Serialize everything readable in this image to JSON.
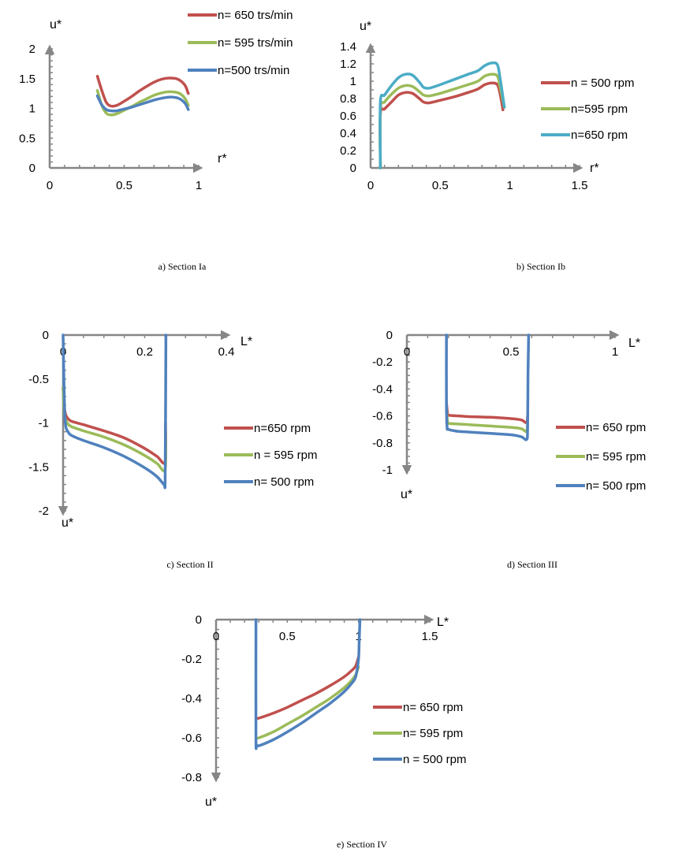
{
  "chart_data": [
    {
      "id": "a",
      "type": "line",
      "caption": "a) Section Ia",
      "xlabel": "r*",
      "ylabel": "u*",
      "xlim": [
        0,
        1
      ],
      "ylim": [
        0,
        2
      ],
      "xticks": [
        "0",
        "0.5",
        "1"
      ],
      "xtick_values": [
        0,
        0.5,
        1
      ],
      "yticks": [
        "0",
        "0.5",
        "1",
        "1.5",
        "2"
      ],
      "ytick_values": [
        0,
        0.5,
        1,
        1.5,
        2
      ],
      "legend_position": "top-right",
      "series": [
        {
          "name": "n= 650 trs/min",
          "color": "#c0504d",
          "x": [
            0.32,
            0.35,
            0.38,
            0.41,
            0.45,
            0.5,
            0.55,
            0.6,
            0.65,
            0.7,
            0.75,
            0.8,
            0.85,
            0.88,
            0.91,
            0.93
          ],
          "y": [
            1.54,
            1.3,
            1.1,
            1.04,
            1.05,
            1.12,
            1.2,
            1.29,
            1.37,
            1.44,
            1.49,
            1.51,
            1.5,
            1.46,
            1.38,
            1.25
          ]
        },
        {
          "name": "n= 595 trs/min",
          "color": "#9bbb59",
          "x": [
            0.32,
            0.35,
            0.38,
            0.41,
            0.45,
            0.5,
            0.55,
            0.6,
            0.65,
            0.7,
            0.75,
            0.8,
            0.85,
            0.88,
            0.91,
            0.93
          ],
          "y": [
            1.3,
            1.05,
            0.92,
            0.89,
            0.91,
            0.97,
            1.03,
            1.1,
            1.16,
            1.22,
            1.26,
            1.28,
            1.27,
            1.24,
            1.16,
            1.05
          ]
        },
        {
          "name": "n=500 trs/min",
          "color": "#4f81bd",
          "x": [
            0.32,
            0.35,
            0.38,
            0.41,
            0.45,
            0.5,
            0.55,
            0.6,
            0.65,
            0.7,
            0.75,
            0.8,
            0.85,
            0.88,
            0.91,
            0.93
          ],
          "y": [
            1.21,
            1.06,
            0.98,
            0.96,
            0.96,
            0.99,
            1.02,
            1.06,
            1.1,
            1.14,
            1.17,
            1.19,
            1.18,
            1.15,
            1.08,
            0.98
          ]
        }
      ]
    },
    {
      "id": "b",
      "type": "line",
      "caption": "b) Section Ib",
      "xlabel": "r*",
      "ylabel": "u*",
      "xlim": [
        0,
        1.5
      ],
      "ylim": [
        0,
        1.4
      ],
      "xticks": [
        "0",
        "0.5",
        "1",
        "1.5"
      ],
      "xtick_values": [
        0,
        0.5,
        1,
        1.5
      ],
      "yticks": [
        "0",
        "0.2",
        "0.4",
        "0.6",
        "0.8",
        "1",
        "1.2",
        "1.4"
      ],
      "ytick_values": [
        0,
        0.2,
        0.4,
        0.6,
        0.8,
        1,
        1.2,
        1.4
      ],
      "legend_position": "right",
      "series": [
        {
          "name": "n = 500 rpm",
          "color": "#c0504d",
          "x": [
            0.07,
            0.07,
            0.1,
            0.15,
            0.2,
            0.25,
            0.3,
            0.35,
            0.38,
            0.42,
            0.5,
            0.6,
            0.7,
            0.77,
            0.82,
            0.87,
            0.91,
            0.93,
            0.95
          ],
          "y": [
            0.0,
            0.62,
            0.68,
            0.76,
            0.84,
            0.87,
            0.86,
            0.8,
            0.76,
            0.75,
            0.78,
            0.82,
            0.87,
            0.91,
            0.96,
            0.98,
            0.96,
            0.85,
            0.67
          ]
        },
        {
          "name": "n=595 rpm",
          "color": "#9bbb59",
          "x": [
            0.07,
            0.07,
            0.1,
            0.15,
            0.2,
            0.25,
            0.3,
            0.35,
            0.38,
            0.42,
            0.5,
            0.6,
            0.7,
            0.77,
            0.82,
            0.87,
            0.91,
            0.93,
            0.96
          ],
          "y": [
            0.0,
            0.68,
            0.76,
            0.85,
            0.92,
            0.95,
            0.94,
            0.88,
            0.84,
            0.83,
            0.86,
            0.91,
            0.96,
            1.0,
            1.06,
            1.08,
            1.06,
            0.93,
            0.7
          ]
        },
        {
          "name": "n=650 rpm",
          "color": "#4bacc6",
          "x": [
            0.07,
            0.07,
            0.1,
            0.15,
            0.2,
            0.25,
            0.3,
            0.35,
            0.38,
            0.42,
            0.5,
            0.6,
            0.7,
            0.77,
            0.82,
            0.87,
            0.91,
            0.93,
            0.96
          ],
          "y": [
            0.0,
            0.76,
            0.84,
            0.95,
            1.04,
            1.08,
            1.07,
            0.99,
            0.93,
            0.92,
            0.96,
            1.02,
            1.08,
            1.12,
            1.18,
            1.21,
            1.19,
            1.03,
            0.7
          ]
        }
      ]
    },
    {
      "id": "c",
      "type": "line",
      "caption": "c) Section II",
      "xlabel": "L*",
      "ylabel": "u*",
      "xlim": [
        0,
        0.4
      ],
      "ylim": [
        -2,
        0
      ],
      "xticks": [
        "0",
        "0.2",
        "0.4"
      ],
      "xtick_values": [
        0,
        0.2,
        0.4
      ],
      "yticks": [
        "0",
        "-0.5",
        "-1",
        "-1.5",
        "-2"
      ],
      "ytick_values": [
        0,
        -0.5,
        -1,
        -1.5,
        -2
      ],
      "legend_position": "right",
      "series": [
        {
          "name": "n=650 rpm",
          "color": "#c0504d",
          "x": [
            0.0,
            0.003,
            0.006,
            0.01,
            0.02,
            0.05,
            0.1,
            0.15,
            0.2,
            0.23,
            0.25,
            0.251
          ],
          "y": [
            -0.6,
            -0.82,
            -0.9,
            -0.94,
            -0.98,
            -1.02,
            -1.09,
            -1.17,
            -1.29,
            -1.38,
            -1.44,
            -1.0
          ]
        },
        {
          "name": "n = 595 rpm",
          "color": "#9bbb59",
          "x": [
            0.0,
            0.003,
            0.006,
            0.01,
            0.02,
            0.05,
            0.1,
            0.15,
            0.2,
            0.23,
            0.25,
            0.251
          ],
          "y": [
            -0.6,
            -0.88,
            -0.96,
            -1.0,
            -1.04,
            -1.09,
            -1.16,
            -1.25,
            -1.37,
            -1.46,
            -1.53,
            -1.1
          ]
        },
        {
          "name": "n= 500 rpm",
          "color": "#4f81bd",
          "x": [
            0.0,
            0.002,
            0.004,
            0.007,
            0.012,
            0.02,
            0.05,
            0.1,
            0.15,
            0.2,
            0.23,
            0.247,
            0.25,
            0.251,
            0.252
          ],
          "y": [
            0.0,
            -0.5,
            -0.9,
            -1.05,
            -1.1,
            -1.14,
            -1.2,
            -1.28,
            -1.38,
            -1.51,
            -1.61,
            -1.7,
            -1.68,
            -1.0,
            0.0
          ]
        }
      ]
    },
    {
      "id": "d",
      "type": "line",
      "caption": "d) Section III",
      "xlabel": "L*",
      "ylabel": "u*",
      "xlim": [
        0,
        1
      ],
      "ylim": [
        -1,
        0
      ],
      "xticks": [
        "0",
        "0.5",
        "1"
      ],
      "xtick_values": [
        0,
        0.5,
        1
      ],
      "yticks": [
        "0",
        "-0.2",
        "-0.4",
        "-0.6",
        "-0.8",
        "-1"
      ],
      "ytick_values": [
        0,
        -0.2,
        -0.4,
        -0.6,
        -0.8,
        -1
      ],
      "legend_position": "right",
      "series": [
        {
          "name": "n= 650 rpm",
          "color": "#c0504d",
          "x": [
            0.19,
            0.195,
            0.2,
            0.25,
            0.3,
            0.4,
            0.5,
            0.55,
            0.575,
            0.58
          ],
          "y": [
            -0.5,
            -0.58,
            -0.595,
            -0.6,
            -0.605,
            -0.61,
            -0.62,
            -0.63,
            -0.65,
            -0.6
          ]
        },
        {
          "name": "n= 595 rpm",
          "color": "#9bbb59",
          "x": [
            0.19,
            0.195,
            0.2,
            0.25,
            0.3,
            0.4,
            0.5,
            0.55,
            0.575,
            0.58
          ],
          "y": [
            -0.55,
            -0.64,
            -0.655,
            -0.66,
            -0.665,
            -0.675,
            -0.685,
            -0.695,
            -0.715,
            -0.65
          ]
        },
        {
          "name": "n= 500 rpm",
          "color": "#4f81bd",
          "x": [
            0.19,
            0.19,
            0.193,
            0.2,
            0.25,
            0.3,
            0.4,
            0.5,
            0.55,
            0.575,
            0.58,
            0.582,
            0.585
          ],
          "y": [
            0.0,
            -0.5,
            -0.68,
            -0.7,
            -0.715,
            -0.72,
            -0.73,
            -0.74,
            -0.755,
            -0.775,
            -0.7,
            -0.3,
            0.0
          ]
        }
      ]
    },
    {
      "id": "e",
      "type": "line",
      "caption": "e) Section IV",
      "xlabel": "L*",
      "ylabel": "u*",
      "xlim": [
        0,
        1.5
      ],
      "ylim": [
        -0.8,
        0
      ],
      "xticks": [
        "0",
        "0.5",
        "1",
        "1.5"
      ],
      "xtick_values": [
        0,
        0.5,
        1,
        1.5
      ],
      "yticks": [
        "0",
        "-0.2",
        "-0.4",
        "-0.6",
        "-0.8"
      ],
      "ytick_values": [
        0,
        -0.2,
        -0.4,
        -0.6,
        -0.8
      ],
      "legend_position": "right",
      "series": [
        {
          "name": "n= 650 rpm",
          "color": "#c0504d",
          "x": [
            0.28,
            0.3,
            0.4,
            0.5,
            0.6,
            0.7,
            0.8,
            0.9,
            0.95,
            0.98,
            1.0
          ],
          "y": [
            -0.5,
            -0.5,
            -0.475,
            -0.445,
            -0.41,
            -0.375,
            -0.335,
            -0.29,
            -0.26,
            -0.235,
            -0.19
          ]
        },
        {
          "name": "n= 595 rpm",
          "color": "#9bbb59",
          "x": [
            0.28,
            0.3,
            0.4,
            0.5,
            0.6,
            0.7,
            0.8,
            0.9,
            0.95,
            0.98,
            1.0
          ],
          "y": [
            -0.6,
            -0.6,
            -0.57,
            -0.53,
            -0.49,
            -0.445,
            -0.4,
            -0.345,
            -0.31,
            -0.28,
            -0.24
          ]
        },
        {
          "name": "n = 500 rpm",
          "color": "#4f81bd",
          "x": [
            0.28,
            0.28,
            0.285,
            0.3,
            0.4,
            0.5,
            0.6,
            0.7,
            0.8,
            0.9,
            0.95,
            0.98,
            1.0,
            1.005,
            1.01
          ],
          "y": [
            0.0,
            -0.6,
            -0.635,
            -0.64,
            -0.61,
            -0.57,
            -0.525,
            -0.475,
            -0.425,
            -0.365,
            -0.325,
            -0.29,
            -0.2,
            -0.1,
            0.0
          ]
        }
      ]
    }
  ]
}
